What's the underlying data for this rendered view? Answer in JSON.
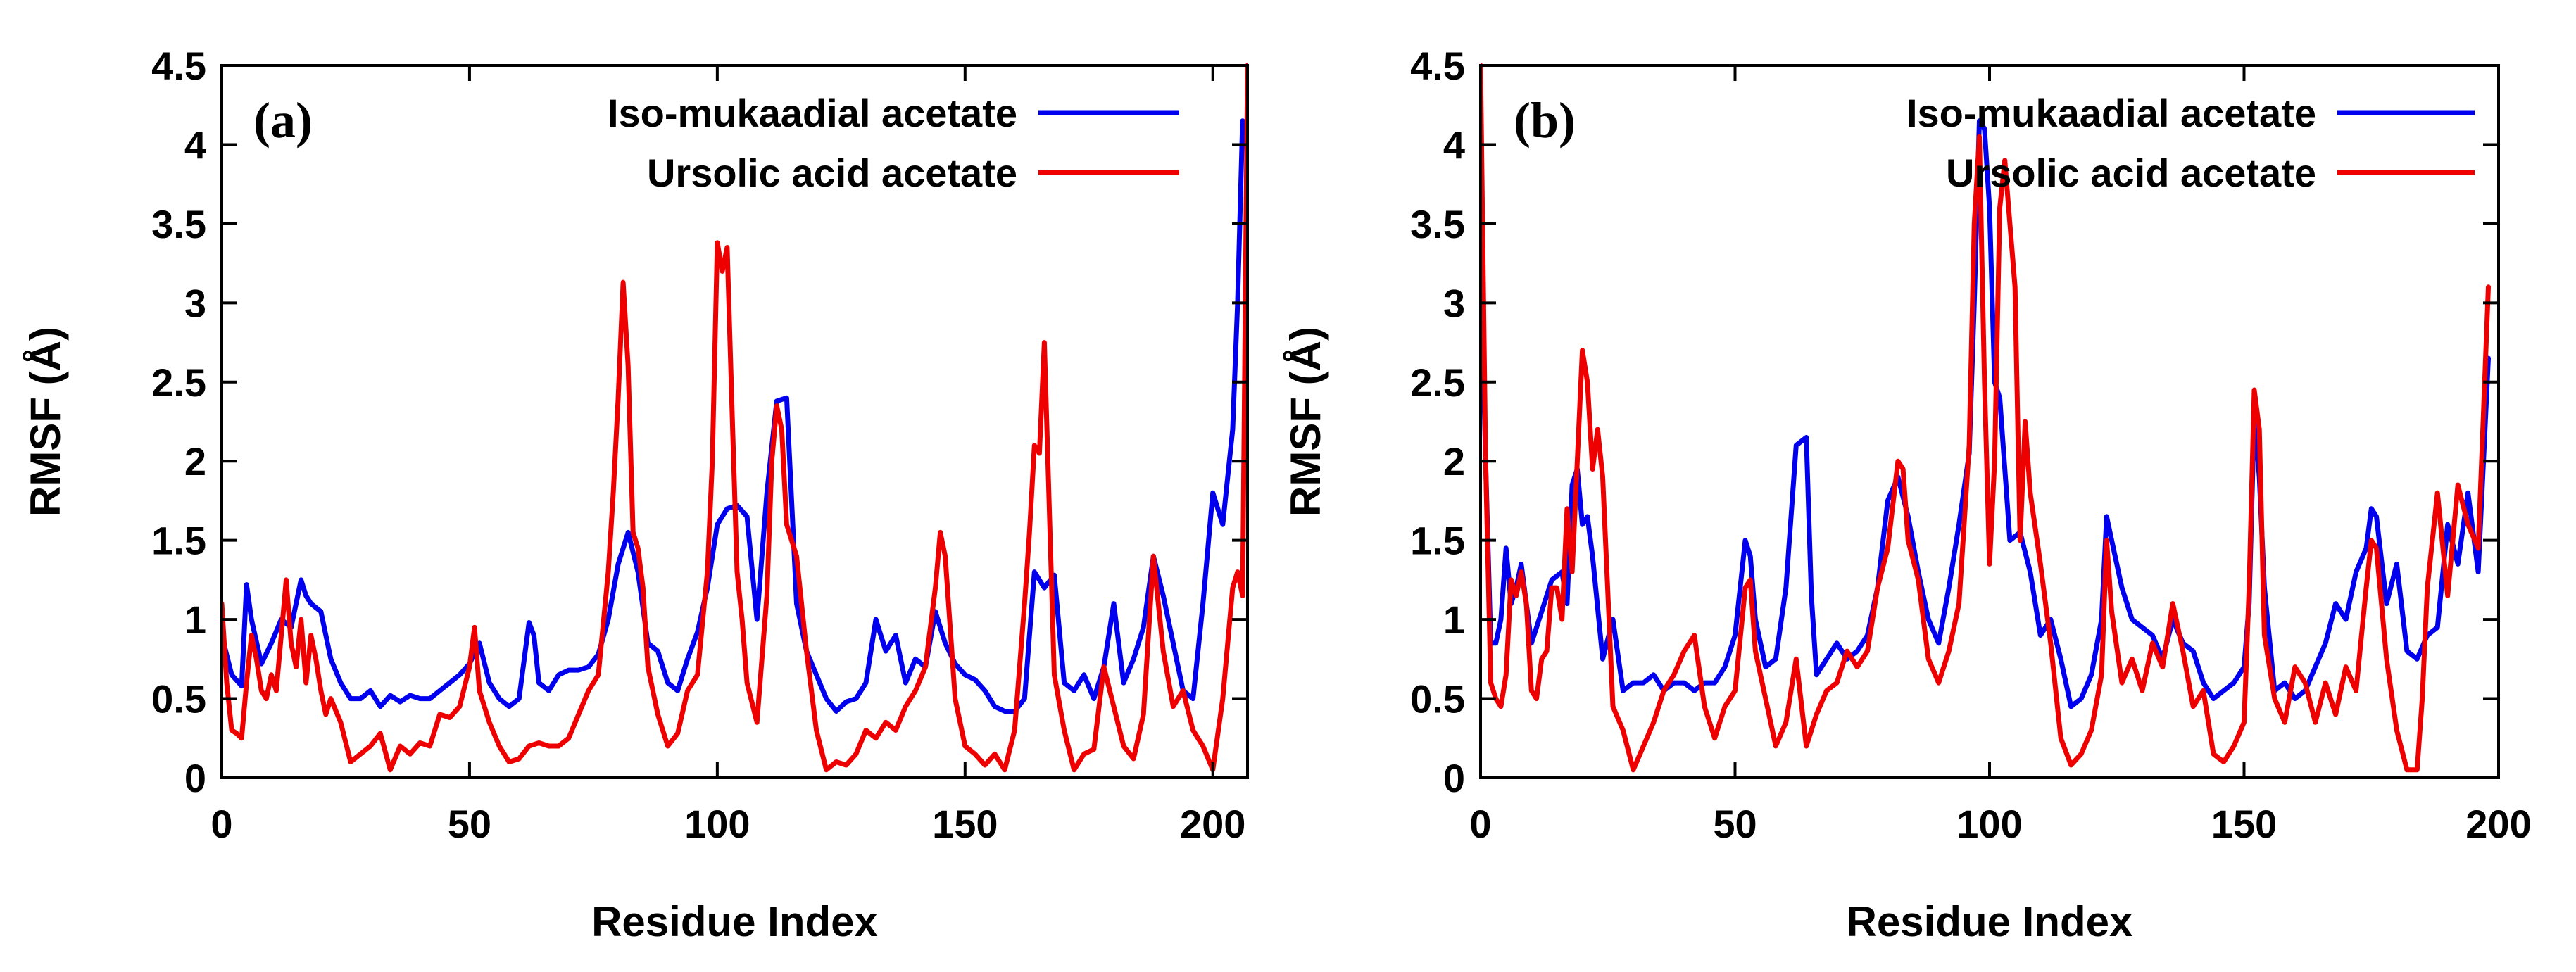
{
  "colors": {
    "blue": "#0000ee",
    "red": "#ee0000",
    "axis": "#000000"
  },
  "chart_data": [
    {
      "type": "line",
      "panel_label": "(a)",
      "xlabel": "Residue Index",
      "ylabel": "RMSF (Å)",
      "xlim": [
        0,
        207
      ],
      "ylim": [
        0,
        4.5
      ],
      "xticks": [
        0,
        50,
        100,
        150,
        200
      ],
      "xtick_labels": [
        "0",
        "50",
        "100",
        "150",
        "200"
      ],
      "yticks": [
        0,
        0.5,
        1,
        1.5,
        2,
        2.5,
        3,
        3.5,
        4,
        4.5
      ],
      "ytick_labels": [
        "0",
        "0.5",
        "1",
        "1.5",
        "2",
        "2.5",
        "3",
        "3.5",
        "4",
        "4.5"
      ],
      "legend_position": "top-right",
      "series": [
        {
          "name": "Iso-mukaadial acetate",
          "color": "#0000ee",
          "x": [
            0,
            2,
            4,
            5,
            6,
            8,
            10,
            12,
            14,
            16,
            17,
            18,
            20,
            22,
            24,
            26,
            28,
            30,
            32,
            34,
            36,
            38,
            40,
            42,
            44,
            46,
            48,
            50,
            52,
            54,
            56,
            58,
            60,
            62,
            63,
            64,
            66,
            68,
            70,
            72,
            74,
            76,
            78,
            80,
            82,
            84,
            86,
            88,
            90,
            92,
            94,
            96,
            98,
            100,
            102,
            104,
            106,
            108,
            110,
            112,
            114,
            116,
            118,
            120,
            122,
            124,
            126,
            128,
            130,
            132,
            134,
            136,
            138,
            140,
            142,
            144,
            146,
            148,
            150,
            152,
            154,
            156,
            158,
            160,
            162,
            164,
            166,
            168,
            170,
            172,
            174,
            176,
            178,
            180,
            182,
            184,
            186,
            188,
            190,
            192,
            194,
            196,
            198,
            200,
            202,
            204,
            205,
            206
          ],
          "values": [
            0.9,
            0.65,
            0.58,
            1.22,
            1.0,
            0.72,
            0.85,
            1.0,
            0.95,
            1.25,
            1.15,
            1.1,
            1.05,
            0.75,
            0.6,
            0.5,
            0.5,
            0.55,
            0.45,
            0.52,
            0.48,
            0.52,
            0.5,
            0.5,
            0.55,
            0.6,
            0.65,
            0.72,
            0.85,
            0.6,
            0.5,
            0.45,
            0.5,
            0.98,
            0.9,
            0.6,
            0.55,
            0.65,
            0.68,
            0.68,
            0.7,
            0.78,
            1.0,
            1.35,
            1.55,
            1.3,
            0.85,
            0.8,
            0.6,
            0.55,
            0.75,
            0.92,
            1.2,
            1.6,
            1.7,
            1.72,
            1.65,
            1.0,
            1.8,
            2.38,
            2.4,
            1.1,
            0.8,
            0.65,
            0.5,
            0.42,
            0.48,
            0.5,
            0.6,
            1.0,
            0.8,
            0.9,
            0.6,
            0.75,
            0.7,
            1.05,
            0.85,
            0.72,
            0.65,
            0.62,
            0.55,
            0.45,
            0.42,
            0.42,
            0.5,
            1.3,
            1.2,
            1.28,
            0.6,
            0.55,
            0.65,
            0.5,
            0.7,
            1.1,
            0.6,
            0.75,
            0.95,
            1.4,
            1.15,
            0.85,
            0.55,
            0.5,
            1.1,
            1.8,
            1.6,
            2.2,
            3.0,
            4.15
          ]
        },
        {
          "name": "Ursolic acid acetate",
          "color": "#ee0000",
          "x": [
            0,
            1,
            2,
            3,
            4,
            5,
            6,
            7,
            8,
            9,
            10,
            11,
            12,
            13,
            14,
            15,
            16,
            17,
            18,
            19,
            20,
            21,
            22,
            24,
            26,
            28,
            30,
            32,
            34,
            36,
            38,
            40,
            42,
            44,
            46,
            48,
            50,
            51,
            52,
            54,
            56,
            58,
            60,
            62,
            64,
            66,
            68,
            70,
            72,
            74,
            76,
            78,
            79,
            80,
            81,
            82,
            83,
            84,
            85,
            86,
            88,
            90,
            92,
            94,
            96,
            98,
            99,
            100,
            101,
            102,
            103,
            104,
            105,
            106,
            108,
            110,
            111,
            112,
            113,
            114,
            116,
            118,
            120,
            122,
            124,
            126,
            128,
            130,
            132,
            134,
            136,
            138,
            140,
            142,
            144,
            145,
            146,
            148,
            150,
            152,
            154,
            156,
            158,
            160,
            162,
            163,
            164,
            165,
            166,
            168,
            170,
            172,
            174,
            176,
            178,
            180,
            182,
            184,
            186,
            188,
            190,
            192,
            194,
            196,
            198,
            200,
            202,
            204,
            205,
            206,
            207
          ],
          "values": [
            1.1,
            0.6,
            0.3,
            0.28,
            0.25,
            0.6,
            0.9,
            0.75,
            0.55,
            0.5,
            0.65,
            0.55,
            0.9,
            1.25,
            0.85,
            0.7,
            1.0,
            0.6,
            0.9,
            0.75,
            0.55,
            0.4,
            0.5,
            0.35,
            0.1,
            0.15,
            0.2,
            0.28,
            0.05,
            0.2,
            0.15,
            0.22,
            0.2,
            0.4,
            0.38,
            0.45,
            0.7,
            0.95,
            0.55,
            0.35,
            0.2,
            0.1,
            0.12,
            0.2,
            0.22,
            0.2,
            0.2,
            0.25,
            0.4,
            0.55,
            0.65,
            1.3,
            1.8,
            2.4,
            3.13,
            2.6,
            1.55,
            1.45,
            1.2,
            0.7,
            0.4,
            0.2,
            0.28,
            0.55,
            0.65,
            1.3,
            2.0,
            3.38,
            3.2,
            3.35,
            2.3,
            1.3,
            1.0,
            0.6,
            0.35,
            1.15,
            2.0,
            2.35,
            2.2,
            1.6,
            1.4,
            0.8,
            0.3,
            0.05,
            0.1,
            0.08,
            0.15,
            0.3,
            0.25,
            0.35,
            0.3,
            0.45,
            0.55,
            0.7,
            1.2,
            1.55,
            1.4,
            0.5,
            0.2,
            0.15,
            0.08,
            0.15,
            0.05,
            0.3,
            1.1,
            1.55,
            2.1,
            2.05,
            2.75,
            0.65,
            0.3,
            0.05,
            0.15,
            0.18,
            0.7,
            0.45,
            0.2,
            0.12,
            0.4,
            1.4,
            0.8,
            0.45,
            0.55,
            0.3,
            0.2,
            0.05,
            0.5,
            1.2,
            1.3,
            1.15,
            4.5
          ]
        }
      ]
    },
    {
      "type": "line",
      "panel_label": "(b)",
      "xlabel": "Residue Index",
      "ylabel": "RMSF (Å)",
      "xlim": [
        0,
        200
      ],
      "ylim": [
        0,
        4.5
      ],
      "xticks": [
        0,
        50,
        100,
        150,
        200
      ],
      "xtick_labels": [
        "0",
        "50",
        "100",
        "150",
        "200"
      ],
      "yticks": [
        0,
        0.5,
        1,
        1.5,
        2,
        2.5,
        3,
        3.5,
        4,
        4.5
      ],
      "ytick_labels": [
        "0",
        "0.5",
        "1",
        "1.5",
        "2",
        "2.5",
        "3",
        "3.5",
        "4",
        "4.5"
      ],
      "legend_position": "top-right",
      "series": [
        {
          "name": "Iso-mukaadial acetate",
          "color": "#0000ee",
          "x": [
            0,
            1,
            2,
            3,
            4,
            5,
            6,
            7,
            8,
            10,
            12,
            14,
            16,
            17,
            18,
            19,
            20,
            21,
            22,
            24,
            26,
            28,
            30,
            32,
            34,
            36,
            38,
            40,
            42,
            44,
            46,
            48,
            50,
            52,
            53,
            54,
            56,
            58,
            60,
            62,
            64,
            65,
            66,
            68,
            70,
            72,
            74,
            76,
            78,
            80,
            82,
            84,
            86,
            88,
            90,
            92,
            94,
            96,
            97,
            98,
            99,
            100,
            101,
            102,
            103,
            104,
            106,
            108,
            110,
            112,
            114,
            116,
            118,
            120,
            122,
            123,
            124,
            126,
            128,
            130,
            132,
            134,
            136,
            138,
            140,
            142,
            144,
            146,
            148,
            150,
            151,
            152,
            153,
            154,
            156,
            158,
            160,
            162,
            164,
            166,
            168,
            170,
            172,
            174,
            175,
            176,
            178,
            180,
            182,
            184,
            186,
            188,
            190,
            192,
            194,
            196,
            198
          ],
          "values": [
            3.35,
            2.0,
            0.85,
            0.85,
            1.0,
            1.45,
            1.1,
            1.2,
            1.35,
            0.85,
            1.05,
            1.25,
            1.3,
            1.1,
            1.85,
            1.95,
            1.6,
            1.65,
            1.4,
            0.75,
            1.0,
            0.55,
            0.6,
            0.6,
            0.65,
            0.55,
            0.6,
            0.6,
            0.55,
            0.6,
            0.6,
            0.7,
            0.9,
            1.5,
            1.4,
            1.0,
            0.7,
            0.75,
            1.2,
            2.1,
            2.15,
            1.15,
            0.65,
            0.75,
            0.85,
            0.75,
            0.8,
            0.9,
            1.2,
            1.75,
            1.9,
            1.65,
            1.3,
            1.0,
            0.85,
            1.2,
            1.6,
            2.05,
            3.0,
            4.15,
            4.1,
            3.6,
            2.5,
            2.4,
            1.95,
            1.5,
            1.55,
            1.3,
            0.9,
            1.0,
            0.75,
            0.45,
            0.5,
            0.65,
            1.0,
            1.65,
            1.5,
            1.2,
            1.0,
            0.95,
            0.9,
            0.75,
            1.0,
            0.85,
            0.8,
            0.6,
            0.5,
            0.55,
            0.6,
            0.7,
            1.1,
            2.3,
            1.9,
            1.2,
            0.55,
            0.6,
            0.5,
            0.55,
            0.7,
            0.85,
            1.1,
            1.0,
            1.3,
            1.45,
            1.7,
            1.65,
            1.1,
            1.35,
            0.8,
            0.75,
            0.9,
            0.95,
            1.6,
            1.35,
            1.8,
            1.3,
            2.65
          ]
        },
        {
          "name": "Ursolic acid acetate",
          "color": "#ee0000",
          "x": [
            0,
            1,
            2,
            3,
            4,
            5,
            6,
            7,
            8,
            9,
            10,
            11,
            12,
            13,
            14,
            15,
            16,
            17,
            18,
            19,
            20,
            21,
            22,
            23,
            24,
            26,
            28,
            30,
            32,
            34,
            36,
            38,
            40,
            42,
            44,
            46,
            48,
            50,
            52,
            53,
            54,
            56,
            58,
            60,
            62,
            64,
            66,
            68,
            70,
            72,
            74,
            76,
            78,
            80,
            82,
            83,
            84,
            86,
            88,
            90,
            92,
            94,
            96,
            97,
            98,
            99,
            100,
            101,
            102,
            103,
            104,
            105,
            106,
            107,
            108,
            110,
            112,
            114,
            116,
            118,
            120,
            122,
            123,
            124,
            126,
            128,
            130,
            132,
            134,
            136,
            138,
            140,
            142,
            144,
            146,
            148,
            150,
            151,
            152,
            153,
            154,
            156,
            158,
            160,
            162,
            164,
            166,
            168,
            170,
            172,
            174,
            175,
            176,
            178,
            180,
            182,
            184,
            185,
            186,
            188,
            190,
            192,
            194,
            196,
            198
          ],
          "values": [
            4.5,
            2.0,
            0.6,
            0.5,
            0.45,
            0.65,
            1.25,
            1.15,
            1.3,
            1.1,
            0.55,
            0.5,
            0.75,
            0.8,
            1.2,
            1.2,
            1.0,
            1.7,
            1.3,
            2.0,
            2.7,
            2.5,
            1.95,
            2.2,
            1.9,
            0.45,
            0.3,
            0.05,
            0.2,
            0.35,
            0.55,
            0.65,
            0.8,
            0.9,
            0.45,
            0.25,
            0.45,
            0.55,
            1.2,
            1.25,
            0.8,
            0.5,
            0.2,
            0.35,
            0.75,
            0.2,
            0.4,
            0.55,
            0.6,
            0.8,
            0.7,
            0.8,
            1.2,
            1.45,
            2.0,
            1.95,
            1.5,
            1.25,
            0.75,
            0.6,
            0.8,
            1.1,
            2.1,
            3.5,
            4.05,
            2.5,
            1.35,
            2.0,
            3.6,
            3.9,
            3.5,
            3.1,
            1.5,
            2.25,
            1.8,
            1.35,
            0.85,
            0.25,
            0.08,
            0.15,
            0.3,
            0.65,
            1.5,
            1.05,
            0.6,
            0.75,
            0.55,
            0.85,
            0.7,
            1.1,
            0.8,
            0.45,
            0.55,
            0.15,
            0.1,
            0.2,
            0.35,
            1.2,
            2.45,
            2.2,
            0.9,
            0.5,
            0.35,
            0.7,
            0.6,
            0.35,
            0.6,
            0.4,
            0.7,
            0.55,
            1.2,
            1.5,
            1.45,
            0.75,
            0.3,
            0.05,
            0.05,
            0.5,
            1.2,
            1.8,
            1.15,
            1.85,
            1.6,
            1.45,
            3.1
          ]
        }
      ]
    }
  ]
}
